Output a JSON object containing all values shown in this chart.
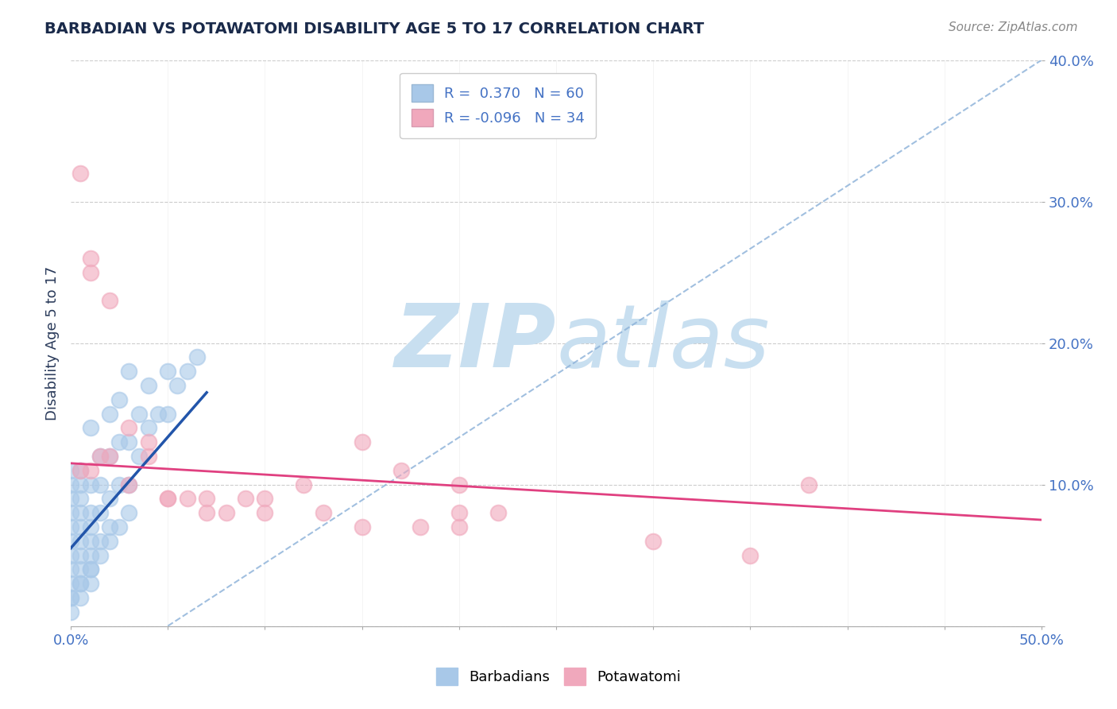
{
  "title": "BARBADIAN VS POTAWATOMI DISABILITY AGE 5 TO 17 CORRELATION CHART",
  "source_text": "Source: ZipAtlas.com",
  "ylabel": "Disability Age 5 to 17",
  "xlim": [
    0.0,
    0.5
  ],
  "ylim": [
    0.0,
    0.4
  ],
  "xticks": [
    0.0,
    0.05,
    0.1,
    0.15,
    0.2,
    0.25,
    0.3,
    0.35,
    0.4,
    0.45,
    0.5
  ],
  "yticks": [
    0.0,
    0.1,
    0.2,
    0.3,
    0.4
  ],
  "legend_r_blue": "R =  0.370",
  "legend_n_blue": "N = 60",
  "legend_r_pink": "R = -0.096",
  "legend_n_pink": "N = 34",
  "legend_label_blue": "Barbadians",
  "legend_label_pink": "Potawatomi",
  "blue_color": "#a8c8e8",
  "pink_color": "#f0a8bc",
  "blue_line_color": "#2255aa",
  "pink_line_color": "#e04080",
  "ref_line_color": "#8ab0d8",
  "background_color": "#ffffff",
  "watermark_color": "#c8dff0",
  "title_color": "#1a2a4a",
  "title_fontsize": 14,
  "axis_label_color": "#2a3a5a",
  "tick_color": "#4472c4",
  "blue_scatter": {
    "x": [
      0.0,
      0.0,
      0.0,
      0.0,
      0.0,
      0.0,
      0.0,
      0.0,
      0.0,
      0.0,
      0.005,
      0.005,
      0.005,
      0.005,
      0.005,
      0.005,
      0.005,
      0.005,
      0.005,
      0.01,
      0.01,
      0.01,
      0.01,
      0.01,
      0.01,
      0.01,
      0.015,
      0.015,
      0.015,
      0.015,
      0.02,
      0.02,
      0.02,
      0.02,
      0.025,
      0.025,
      0.025,
      0.03,
      0.03,
      0.03,
      0.035,
      0.035,
      0.04,
      0.04,
      0.045,
      0.05,
      0.05,
      0.055,
      0.06,
      0.065,
      0.0,
      0.0,
      0.005,
      0.005,
      0.01,
      0.01,
      0.015,
      0.02,
      0.025,
      0.03
    ],
    "y": [
      0.02,
      0.03,
      0.04,
      0.05,
      0.06,
      0.07,
      0.08,
      0.09,
      0.1,
      0.11,
      0.03,
      0.04,
      0.05,
      0.06,
      0.07,
      0.08,
      0.09,
      0.1,
      0.11,
      0.04,
      0.05,
      0.06,
      0.07,
      0.08,
      0.1,
      0.14,
      0.06,
      0.08,
      0.1,
      0.12,
      0.07,
      0.09,
      0.12,
      0.15,
      0.1,
      0.13,
      0.16,
      0.1,
      0.13,
      0.18,
      0.12,
      0.15,
      0.14,
      0.17,
      0.15,
      0.15,
      0.18,
      0.17,
      0.18,
      0.19,
      0.01,
      0.02,
      0.02,
      0.03,
      0.03,
      0.04,
      0.05,
      0.06,
      0.07,
      0.08
    ]
  },
  "pink_scatter": {
    "x": [
      0.01,
      0.01,
      0.02,
      0.03,
      0.04,
      0.05,
      0.07,
      0.09,
      0.1,
      0.12,
      0.15,
      0.17,
      0.2,
      0.2,
      0.005,
      0.01,
      0.015,
      0.02,
      0.03,
      0.04,
      0.05,
      0.06,
      0.07,
      0.08,
      0.1,
      0.13,
      0.15,
      0.18,
      0.2,
      0.22,
      0.3,
      0.35,
      0.38,
      0.005
    ],
    "y": [
      0.26,
      0.25,
      0.23,
      0.14,
      0.13,
      0.09,
      0.09,
      0.09,
      0.09,
      0.1,
      0.13,
      0.11,
      0.1,
      0.08,
      0.11,
      0.11,
      0.12,
      0.12,
      0.1,
      0.12,
      0.09,
      0.09,
      0.08,
      0.08,
      0.08,
      0.08,
      0.07,
      0.07,
      0.07,
      0.08,
      0.06,
      0.05,
      0.1,
      0.32
    ]
  },
  "blue_reg_line": {
    "x": [
      0.0,
      0.07
    ],
    "y": [
      0.055,
      0.165
    ]
  },
  "pink_reg_line": {
    "x": [
      0.0,
      0.5
    ],
    "y": [
      0.115,
      0.075
    ]
  },
  "ref_line": {
    "x": [
      0.05,
      0.5
    ],
    "y": [
      0.0,
      0.4
    ]
  }
}
